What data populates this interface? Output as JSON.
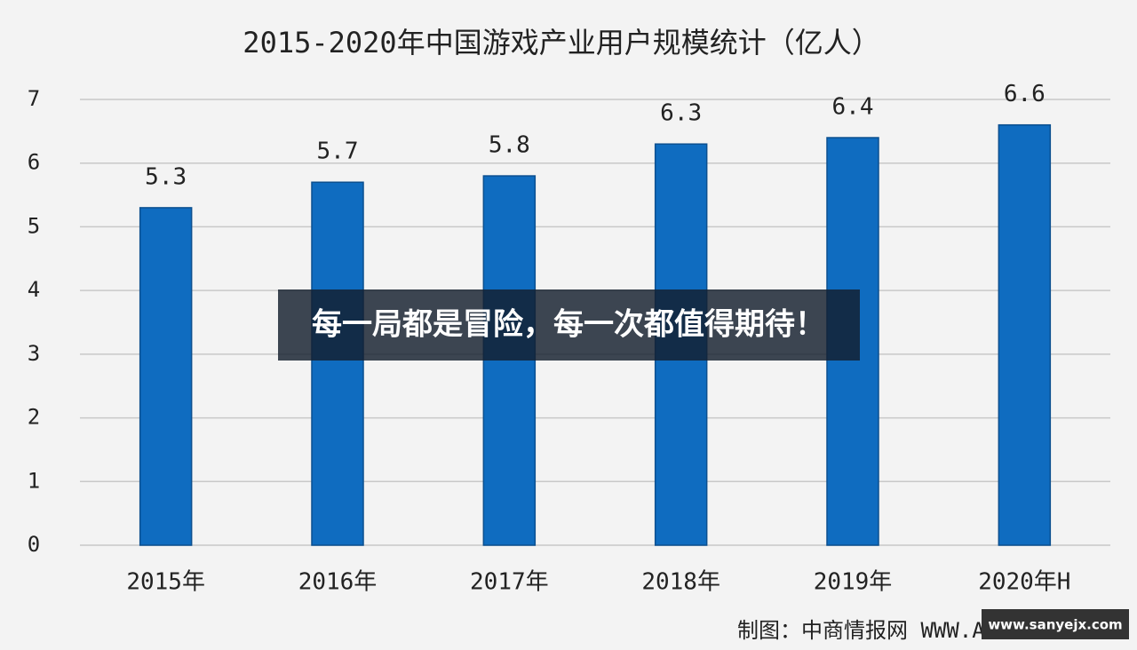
{
  "chart_data": {
    "type": "bar",
    "title": "2015-2020年中国游戏产业用户规模统计（亿人）",
    "categories": [
      "2015年",
      "2016年",
      "2017年",
      "2018年",
      "2019年",
      "2020年H"
    ],
    "values": [
      5.3,
      5.7,
      5.8,
      6.3,
      6.4,
      6.6
    ],
    "color": "#0f6cc0",
    "ylim": [
      0,
      7
    ],
    "yticks": [
      0,
      1,
      2,
      3,
      4,
      5,
      6,
      7
    ],
    "grid": true,
    "source": "制图：中商情报网 WWW.ASKCI.COM"
  },
  "overlay_caption": "每一局都是冒险，每一次都值得期待！",
  "site_badge": "www.sanyejx.com"
}
